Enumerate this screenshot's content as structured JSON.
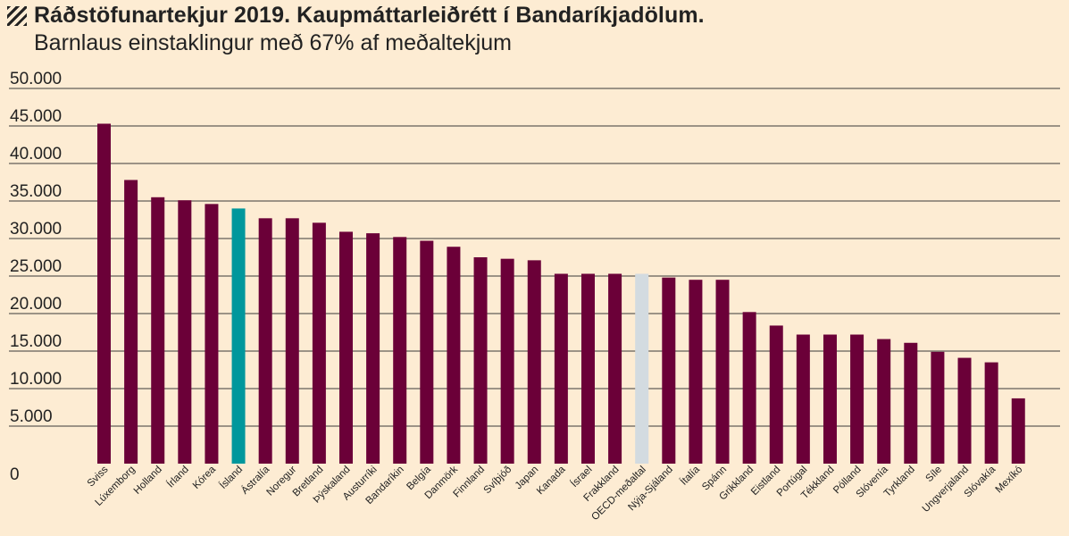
{
  "header": {
    "title": "Ráðstöfunartekjur 2019. Kaupmáttarleiðrétt í Bandaríkjadölum.",
    "subtitle": "Barnlaus einstaklingur með 67% af meðaltekjum"
  },
  "colors": {
    "background": "#fdecd3",
    "bar_default": "#6b0038",
    "bar_iceland": "#00979c",
    "bar_oecd": "#d3dbe0",
    "gridline": "#3a3a3a"
  },
  "chart_data": {
    "type": "bar",
    "title": "Ráðstöfunartekjur 2019. Kaupmáttarleiðrétt í Bandaríkjadölum.",
    "subtitle": "Barnlaus einstaklingur með 67% af meðaltekjum",
    "xlabel": "",
    "ylabel": "",
    "ylim": [
      0,
      50000
    ],
    "yticks": [
      0,
      5000,
      10000,
      15000,
      20000,
      25000,
      30000,
      35000,
      40000,
      45000,
      50000
    ],
    "ytick_labels": [
      "0",
      "5.000",
      "10.000",
      "15.000",
      "20.000",
      "25.000",
      "30.000",
      "35.000",
      "40.000",
      "45.000",
      "50.000"
    ],
    "grid": true,
    "categories": [
      "Sviss",
      "Lúxemborg",
      "Holland",
      "Írland",
      "Kórea",
      "Ísland",
      "Ástralía",
      "Noregur",
      "Bretland",
      "Þýskaland",
      "Austurríki",
      "Bandaríkin",
      "Belgía",
      "Danmörk",
      "Finnland",
      "Svíþjóð",
      "Japan",
      "Kanada",
      "Ísrael",
      "Frakkland",
      "OECD-meðaltal",
      "Nýja-Sjáland",
      "Ítalía",
      "Spánn",
      "Grikkland",
      "Eistland",
      "Portúgal",
      "Tékkland",
      "Pólland",
      "Slóvenía",
      "Tyrkland",
      "Síle",
      "Ungverjaland",
      "Slóvakía",
      "Mexíkó"
    ],
    "values": [
      45300,
      37800,
      35500,
      35100,
      34600,
      34000,
      32700,
      32700,
      32100,
      30900,
      30700,
      30200,
      29700,
      28900,
      27500,
      27300,
      27100,
      25300,
      25300,
      25300,
      25300,
      24800,
      24500,
      24500,
      20200,
      18400,
      17200,
      17200,
      17200,
      16600,
      16100,
      14900,
      14100,
      13500,
      8700
    ],
    "highlights": {
      "Ísland": "bar_iceland",
      "OECD-meðaltal": "bar_oecd"
    }
  }
}
